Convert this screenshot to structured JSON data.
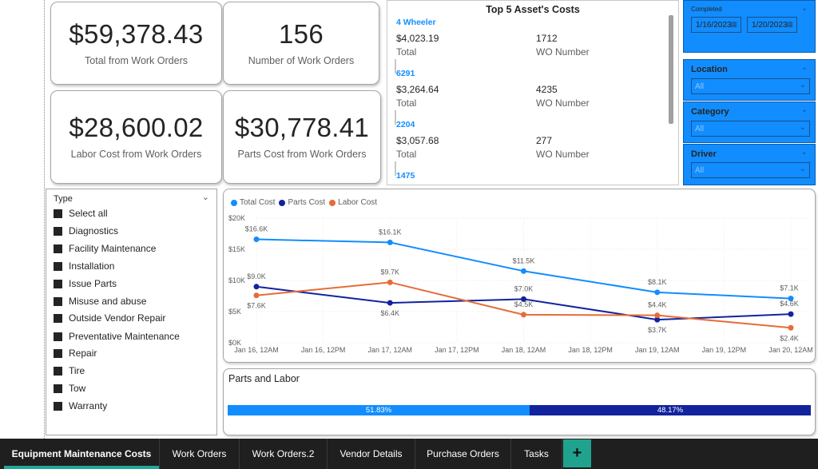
{
  "kpis": [
    {
      "value": "$59,378.43",
      "label": "Total from Work Orders"
    },
    {
      "value": "156",
      "label": "Number of Work Orders"
    },
    {
      "value": "$28,600.02",
      "label": "Labor Cost from Work Orders"
    },
    {
      "value": "$30,778.41",
      "label": "Parts Cost from Work Orders"
    }
  ],
  "top5": {
    "title": "Top 5 Asset's Costs",
    "items": [
      {
        "name": "4 Wheeler",
        "total": "$4,023.19",
        "total_label": "Total",
        "wo": "1712",
        "wo_label": "WO Number"
      },
      {
        "name": "6291",
        "total": "$3,264.64",
        "total_label": "Total",
        "wo": "4235",
        "wo_label": "WO Number"
      },
      {
        "name": "2204",
        "total": "$3,057.68",
        "total_label": "Total",
        "wo": "277",
        "wo_label": "WO Number"
      },
      {
        "name": "1475"
      }
    ]
  },
  "slicers": {
    "completed": {
      "label": "Completed",
      "from": "1/16/2023",
      "to": "1/20/2023"
    },
    "location": {
      "label": "Location",
      "value": "All"
    },
    "category": {
      "label": "Category",
      "value": "All"
    },
    "driver": {
      "label": "Driver",
      "value": "All"
    }
  },
  "type_slicer": {
    "label": "Type",
    "items": [
      "Select all",
      "Diagnostics",
      "Facility Maintenance",
      "Installation",
      "Issue Parts",
      "Misuse and abuse",
      "Outside Vendor Repair",
      "Preventative Maintenance",
      "Repair",
      "Tire",
      "Tow",
      "Warranty"
    ]
  },
  "chart_data": {
    "type": "line",
    "title": "",
    "xlabel": "",
    "ylabel": "",
    "x": [
      "Jan 16, 12AM",
      "Jan 17, 12AM",
      "Jan 18, 12AM",
      "Jan 19, 12AM",
      "Jan 20, 12AM"
    ],
    "x_ticks": [
      "Jan 16, 12AM",
      "Jan 16, 12PM",
      "Jan 17, 12AM",
      "Jan 17, 12PM",
      "Jan 18, 12AM",
      "Jan 18, 12PM",
      "Jan 19, 12AM",
      "Jan 19, 12PM",
      "Jan 20, 12AM"
    ],
    "y_ticks": [
      "$0K",
      "$5K",
      "$10K",
      "$15K",
      "$20K"
    ],
    "ylim": [
      0,
      20000
    ],
    "grid": true,
    "legend_position": "top-left",
    "series": [
      {
        "name": "Total Cost",
        "color": "#118dff",
        "values": [
          16600,
          16100,
          11500,
          8100,
          7100
        ],
        "labels": [
          "$16.6K",
          "$16.1K",
          "$11.5K",
          "$8.1K",
          "$7.1K"
        ]
      },
      {
        "name": "Parts Cost",
        "color": "#12239e",
        "values": [
          9000,
          6400,
          7000,
          3700,
          4600
        ],
        "labels": [
          "$9.0K",
          "$6.4K",
          "$7.0K",
          "$3.7K",
          "$4.6K"
        ]
      },
      {
        "name": "Labor Cost",
        "color": "#e66c37",
        "values": [
          7600,
          9700,
          4500,
          4400,
          2400
        ],
        "labels": [
          "$7.6K",
          "$9.7K",
          "$4.5K",
          "$4.4K",
          "$2.4K"
        ]
      }
    ]
  },
  "parts_labor": {
    "title": "Parts and Labor",
    "parts_pct": "51.83%",
    "labor_pct": "48.17%",
    "parts_fraction": 0.5183,
    "parts_color": "#118dff",
    "labor_color": "#12239e"
  },
  "tabs": [
    {
      "label": "Equipment Maintenance Costs",
      "active": true
    },
    {
      "label": "Work Orders"
    },
    {
      "label": "Work Orders.2"
    },
    {
      "label": "Vendor Details"
    },
    {
      "label": "Purchase Orders"
    },
    {
      "label": "Tasks"
    }
  ],
  "add_tab_label": "+"
}
